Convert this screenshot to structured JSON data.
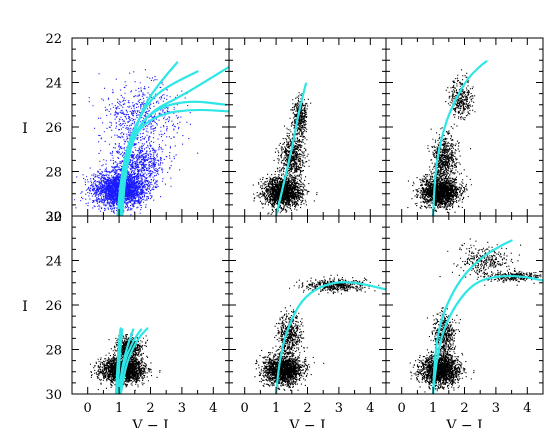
{
  "chart_data": {
    "type": "scatter",
    "layout": "2x3 grid of color-magnitude diagrams",
    "xlabel": "V − I",
    "ylabel": "I",
    "xlim": [
      -0.5,
      4.5
    ],
    "ylim": [
      30,
      22
    ],
    "y_inverted": true,
    "x_ticks": [
      0,
      1,
      2,
      3,
      4
    ],
    "y_ticks": [
      22,
      24,
      26,
      28,
      30
    ],
    "colors": {
      "points_top_left": "#1a1aff",
      "points_other": "#000000",
      "isochrones": "#2ee6e6"
    },
    "panels": [
      {
        "id": "top-left",
        "point_color": "blue",
        "point_clouds": [
          {
            "center": [
              1.0,
              28.8
            ],
            "spread": [
              0.75,
              0.7
            ],
            "n": 2600
          },
          {
            "center": [
              1.6,
              27.6
            ],
            "spread": [
              0.8,
              0.9
            ],
            "n": 700
          },
          {
            "center": [
              1.7,
              25.5
            ],
            "spread": [
              1.1,
              1.3
            ],
            "n": 600
          }
        ],
        "isochrones": [
          [
            [
              1.0,
              30
            ],
            [
              1.1,
              28.5
            ],
            [
              1.35,
              26.8
            ],
            [
              1.8,
              25.0
            ],
            [
              2.3,
              24.0
            ],
            [
              2.85,
              23.1
            ]
          ],
          [
            [
              0.95,
              30
            ],
            [
              1.05,
              28.4
            ],
            [
              1.3,
              26.6
            ],
            [
              1.9,
              24.9
            ],
            [
              2.5,
              24.2
            ],
            [
              3.5,
              23.5
            ]
          ],
          [
            [
              1.0,
              30
            ],
            [
              1.1,
              28.3
            ],
            [
              1.4,
              26.5
            ],
            [
              2.0,
              25.3
            ],
            [
              3.0,
              24.6
            ],
            [
              4.5,
              23.3
            ]
          ],
          [
            [
              1.05,
              30
            ],
            [
              1.15,
              28.2
            ],
            [
              1.45,
              26.3
            ],
            [
              2.1,
              25.2
            ],
            [
              3.2,
              24.8
            ],
            [
              4.4,
              25.0
            ]
          ],
          [
            [
              1.1,
              30
            ],
            [
              1.2,
              28.0
            ],
            [
              1.5,
              26.2
            ],
            [
              2.3,
              25.4
            ],
            [
              3.4,
              25.2
            ],
            [
              4.5,
              25.3
            ]
          ]
        ]
      },
      {
        "id": "top-middle",
        "point_color": "black",
        "point_clouds": [
          {
            "center": [
              1.2,
              28.9
            ],
            "spread": [
              0.55,
              0.6
            ],
            "n": 1800
          },
          {
            "center": [
              1.5,
              27.3
            ],
            "spread": [
              0.35,
              0.9
            ],
            "n": 600
          },
          {
            "center": [
              1.75,
              25.5
            ],
            "spread": [
              0.2,
              0.8
            ],
            "n": 400
          }
        ],
        "isochrones": [
          [
            [
              1.0,
              30
            ],
            [
              1.25,
              28.5
            ],
            [
              1.5,
              27.0
            ],
            [
              1.7,
              25.5
            ],
            [
              1.85,
              24.6
            ],
            [
              1.95,
              24.05
            ]
          ]
        ]
      },
      {
        "id": "top-right",
        "point_color": "black",
        "point_clouds": [
          {
            "center": [
              1.2,
              28.9
            ],
            "spread": [
              0.55,
              0.6
            ],
            "n": 1800
          },
          {
            "center": [
              1.35,
              27.4
            ],
            "spread": [
              0.35,
              0.9
            ],
            "n": 600
          },
          {
            "center": [
              1.85,
              24.7
            ],
            "spread": [
              0.35,
              0.8
            ],
            "n": 350
          }
        ],
        "isochrones": [
          [
            [
              1.0,
              30
            ],
            [
              1.05,
              28.5
            ],
            [
              1.15,
              27.2
            ],
            [
              1.4,
              25.8
            ],
            [
              1.7,
              24.8
            ],
            [
              2.1,
              23.8
            ],
            [
              2.55,
              23.2
            ],
            [
              2.7,
              23.05
            ]
          ]
        ]
      },
      {
        "id": "bottom-left",
        "point_color": "black",
        "point_clouds": [
          {
            "center": [
              1.1,
              28.9
            ],
            "spread": [
              0.6,
              0.5
            ],
            "n": 2200
          },
          {
            "center": [
              1.3,
              27.9
            ],
            "spread": [
              0.35,
              0.45
            ],
            "n": 700
          }
        ],
        "isochrones": [
          [
            [
              0.95,
              30
            ],
            [
              1.0,
              28.8
            ],
            [
              1.05,
              27.8
            ],
            [
              1.1,
              27.1
            ]
          ],
          [
            [
              1.0,
              30
            ],
            [
              1.1,
              28.7
            ],
            [
              1.3,
              27.7
            ],
            [
              1.45,
              27.1
            ]
          ],
          [
            [
              1.0,
              30
            ],
            [
              1.15,
              28.6
            ],
            [
              1.45,
              27.6
            ],
            [
              1.7,
              27.1
            ]
          ],
          [
            [
              1.05,
              30
            ],
            [
              1.25,
              28.5
            ],
            [
              1.6,
              27.5
            ],
            [
              1.9,
              27.05
            ]
          ],
          [
            [
              0.9,
              30
            ],
            [
              0.95,
              28.7
            ],
            [
              1.0,
              27.6
            ],
            [
              1.05,
              27.05
            ]
          ]
        ]
      },
      {
        "id": "bottom-middle",
        "point_color": "black",
        "point_clouds": [
          {
            "center": [
              1.2,
              28.9
            ],
            "spread": [
              0.55,
              0.6
            ],
            "n": 1800
          },
          {
            "center": [
              1.4,
              27.3
            ],
            "spread": [
              0.35,
              0.8
            ],
            "n": 500
          },
          {
            "center": [
              2.9,
              25.1
            ],
            "spread": [
              0.9,
              0.25
            ],
            "n": 450
          }
        ],
        "isochrones": [
          [
            [
              1.0,
              30
            ],
            [
              1.1,
              28.6
            ],
            [
              1.3,
              27.3
            ],
            [
              1.7,
              26.0
            ],
            [
              2.2,
              25.3
            ],
            [
              2.9,
              24.95
            ],
            [
              3.6,
              25.0
            ],
            [
              4.5,
              25.3
            ]
          ]
        ]
      },
      {
        "id": "bottom-right",
        "point_color": "black",
        "point_clouds": [
          {
            "center": [
              1.2,
              28.9
            ],
            "spread": [
              0.55,
              0.6
            ],
            "n": 1800
          },
          {
            "center": [
              1.35,
              27.3
            ],
            "spread": [
              0.3,
              0.9
            ],
            "n": 500
          },
          {
            "center": [
              2.6,
              24.0
            ],
            "spread": [
              0.75,
              0.6
            ],
            "n": 300
          },
          {
            "center": [
              3.5,
              24.7
            ],
            "spread": [
              0.8,
              0.2
            ],
            "n": 300
          }
        ],
        "isochrones": [
          [
            [
              1.0,
              30
            ],
            [
              1.05,
              28.4
            ],
            [
              1.2,
              26.9
            ],
            [
              1.55,
              25.6
            ],
            [
              2.0,
              24.6
            ],
            [
              2.6,
              23.8
            ],
            [
              3.2,
              23.3
            ],
            [
              3.5,
              23.1
            ]
          ],
          [
            [
              1.0,
              30
            ],
            [
              1.1,
              28.6
            ],
            [
              1.3,
              27.2
            ],
            [
              1.7,
              26.0
            ],
            [
              2.3,
              25.0
            ],
            [
              3.0,
              24.7
            ],
            [
              3.8,
              24.7
            ],
            [
              4.5,
              24.9
            ]
          ]
        ]
      }
    ]
  }
}
